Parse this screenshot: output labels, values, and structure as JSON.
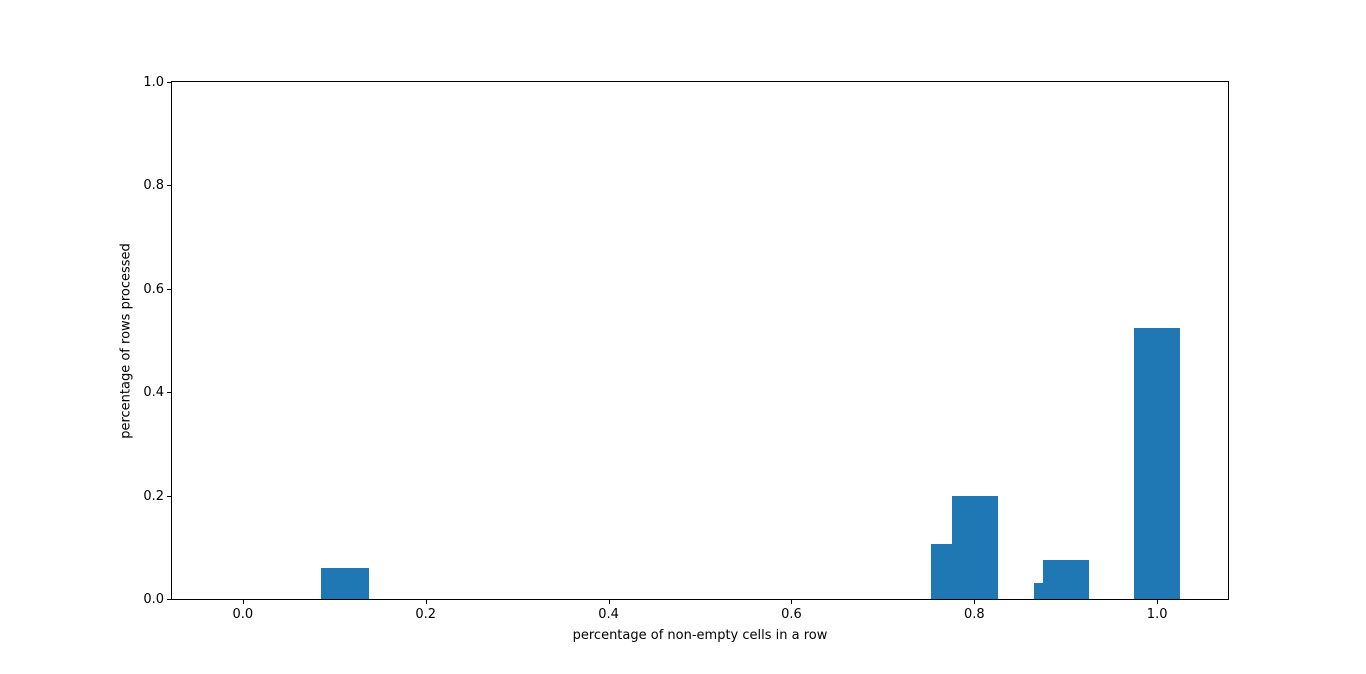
{
  "chart_data": {
    "type": "bar",
    "title": "",
    "xlabel": "percentage of non-empty cells in a row",
    "ylabel": "percentage of rows processed",
    "xlim": [
      -0.0775,
      1.0775
    ],
    "ylim": [
      0,
      1.0
    ],
    "x_ticks": [
      0.0,
      0.2,
      0.4,
      0.6,
      0.8,
      1.0
    ],
    "x_tick_labels": [
      "0.0",
      "0.2",
      "0.4",
      "0.6",
      "0.8",
      "1.0"
    ],
    "y_ticks": [
      0.0,
      0.2,
      0.4,
      0.6,
      0.8,
      1.0
    ],
    "y_tick_labels": [
      "0.0",
      "0.2",
      "0.4",
      "0.6",
      "0.8",
      "1.0"
    ],
    "grid": false,
    "legend": null,
    "bar_color": "#1f77b4",
    "axis_color": "#000000",
    "bars": [
      {
        "x_left": 0.086,
        "x_right": 0.138,
        "height": 0.06
      },
      {
        "x_left": 0.753,
        "x_right": 0.776,
        "height": 0.106
      },
      {
        "x_left": 0.776,
        "x_right": 0.826,
        "height": 0.2
      },
      {
        "x_left": 0.865,
        "x_right": 0.875,
        "height": 0.031
      },
      {
        "x_left": 0.875,
        "x_right": 0.925,
        "height": 0.076
      },
      {
        "x_left": 0.975,
        "x_right": 1.025,
        "height": 0.524
      }
    ]
  }
}
